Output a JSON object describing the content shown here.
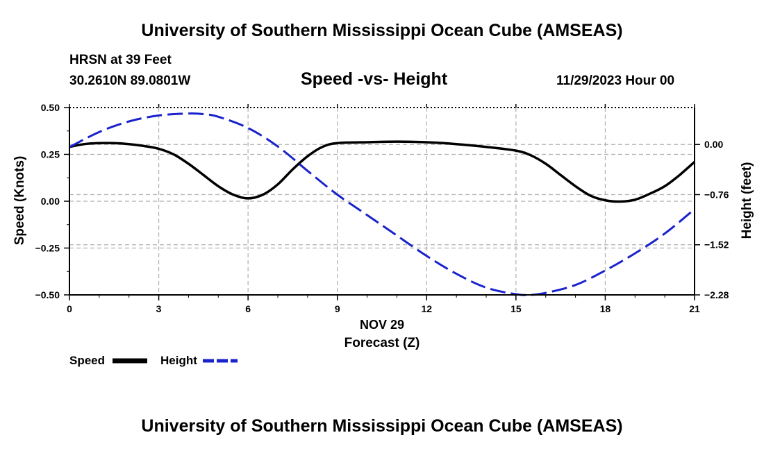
{
  "page": {
    "title_top": "University of Southern Mississippi Ocean Cube (AMSEAS)",
    "title_bottom": "University of Southern Mississippi Ocean Cube (AMSEAS)",
    "station": "HRSN at 39 Feet",
    "coords": "30.2610N  89.0801W",
    "plot_title": "Speed -vs- Height",
    "datetime": "11/29/2023 Hour 00"
  },
  "chart_data": {
    "type": "line",
    "title": "Speed -vs- Height",
    "xlabel_line1": "NOV 29",
    "xlabel": "Forecast (Z)",
    "ylabel": "Speed (Knots)",
    "y2label": "Height (feet)",
    "xlim": [
      0,
      21
    ],
    "x_ticks": [
      0,
      3,
      6,
      9,
      12,
      15,
      18,
      21
    ],
    "ylim": [
      -0.5,
      0.5
    ],
    "y_ticks": [
      -0.5,
      -0.25,
      0.0,
      0.25,
      0.5
    ],
    "y_tick_labels": [
      "−0.50",
      "−0.25",
      "0.00",
      "0.25",
      "0.50"
    ],
    "y2lim": [
      -2.28,
      0.56
    ],
    "y2_ticks": [
      0.0,
      -0.76,
      -1.52,
      -2.28
    ],
    "y2_tick_labels": [
      "0.00",
      "−0.76",
      "−1.52",
      "−2.28"
    ],
    "grid": true,
    "series": [
      {
        "name": "Speed",
        "axis": "left",
        "color": "#000000",
        "style": "solid",
        "x": [
          0,
          0.5,
          1,
          1.5,
          2,
          2.5,
          3,
          3.5,
          4,
          4.5,
          5,
          5.5,
          6,
          6.5,
          7,
          7.5,
          8,
          8.5,
          9,
          10,
          11,
          12,
          13,
          14,
          15,
          15.5,
          16,
          16.5,
          17,
          17.5,
          18,
          18.5,
          19,
          19.5,
          20,
          20.5,
          21
        ],
        "values": [
          0.29,
          0.305,
          0.31,
          0.31,
          0.305,
          0.295,
          0.28,
          0.25,
          0.2,
          0.14,
          0.08,
          0.035,
          0.015,
          0.035,
          0.09,
          0.17,
          0.24,
          0.29,
          0.31,
          0.315,
          0.318,
          0.315,
          0.305,
          0.29,
          0.27,
          0.245,
          0.2,
          0.14,
          0.08,
          0.03,
          0.005,
          -0.002,
          0.008,
          0.04,
          0.08,
          0.14,
          0.21
        ]
      },
      {
        "name": "Height",
        "axis": "right",
        "color": "#1a22cc",
        "style": "dashed",
        "x": [
          0,
          1,
          2,
          3,
          4,
          4.5,
          5,
          6,
          7,
          8,
          9,
          10,
          11,
          12,
          13,
          14,
          15,
          15.5,
          16,
          17,
          18,
          19,
          20,
          21
        ],
        "values": [
          -0.04,
          0.19,
          0.35,
          0.44,
          0.47,
          0.46,
          0.42,
          0.25,
          -0.03,
          -0.4,
          -0.76,
          -1.07,
          -1.38,
          -1.69,
          -1.96,
          -2.17,
          -2.27,
          -2.28,
          -2.25,
          -2.13,
          -1.91,
          -1.65,
          -1.35,
          -0.98
        ]
      }
    ],
    "legend": [
      {
        "label": "Speed",
        "color": "#000000",
        "style": "solid"
      },
      {
        "label": "Height",
        "color": "#1a22cc",
        "style": "dashed"
      }
    ],
    "legend_position": "bottom-left"
  }
}
